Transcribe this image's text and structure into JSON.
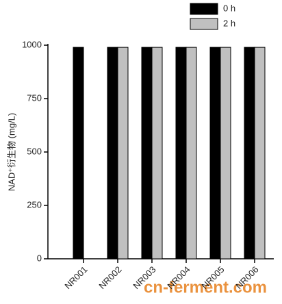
{
  "chart_data": {
    "type": "bar",
    "y_label": "NAD⁺衍生物 (mg/L)",
    "categories": [
      "NR001",
      "NR002",
      "NR003",
      "NR004",
      "NR005",
      "NR006"
    ],
    "series": [
      {
        "name": "0 h",
        "color": "#000000",
        "values": [
          990,
          990,
          990,
          990,
          990,
          990
        ]
      },
      {
        "name": "2 h",
        "color": "#c0c0c0",
        "values": [
          null,
          990,
          990,
          990,
          990,
          990
        ]
      }
    ],
    "ylim": [
      0,
      1000
    ],
    "yticks": [
      0,
      250,
      500,
      750,
      1000
    ],
    "legend": "top-right",
    "watermark": "cn-ferment.com"
  }
}
